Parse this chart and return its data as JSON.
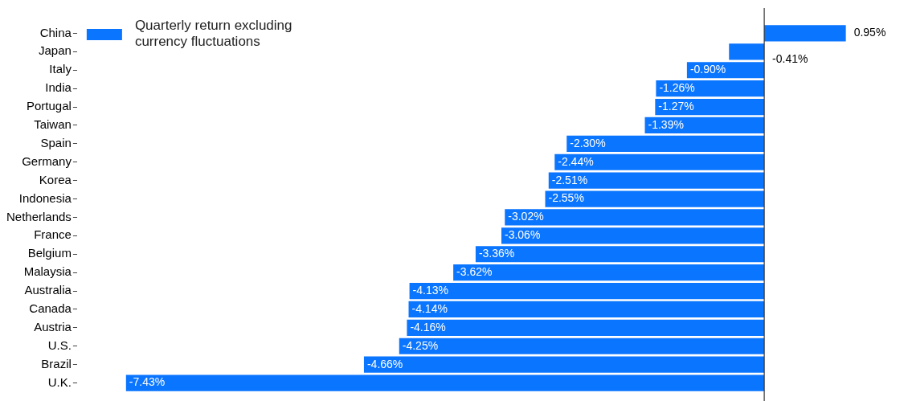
{
  "chart_data": {
    "type": "bar",
    "orientation": "horizontal",
    "legend": "top left",
    "grid": false,
    "categories": [
      "China",
      "Japan",
      "Italy",
      "India",
      "Portugal",
      "Taiwan",
      "Spain",
      "Germany",
      "Korea",
      "Indonesia",
      "Netherlands",
      "France",
      "Belgium",
      "Malaysia",
      "Australia",
      "Canada",
      "Austria",
      "U.S.",
      "Brazil",
      "U.K."
    ],
    "series": [
      {
        "name": "Quarterly return excluding currency fluctuations",
        "color": "#0a75ff",
        "values": [
          0.95,
          -0.41,
          -0.9,
          -1.26,
          -1.27,
          -1.39,
          -2.3,
          -2.44,
          -2.51,
          -2.55,
          -3.02,
          -3.06,
          -3.36,
          -3.62,
          -4.13,
          -4.14,
          -4.16,
          -4.25,
          -4.66,
          -7.43
        ],
        "value_labels": [
          "0.95%",
          "-0.41%",
          "-0.90%",
          "-1.26%",
          "-1.27%",
          "-1.39%",
          "-2.30%",
          "-2.44%",
          "-2.51%",
          "-2.55%",
          "-3.02%",
          "-3.06%",
          "-3.36%",
          "-3.62%",
          "-4.13%",
          "-4.14%",
          "-4.16%",
          "-4.25%",
          "-4.66%",
          "-7.43%"
        ]
      }
    ]
  }
}
